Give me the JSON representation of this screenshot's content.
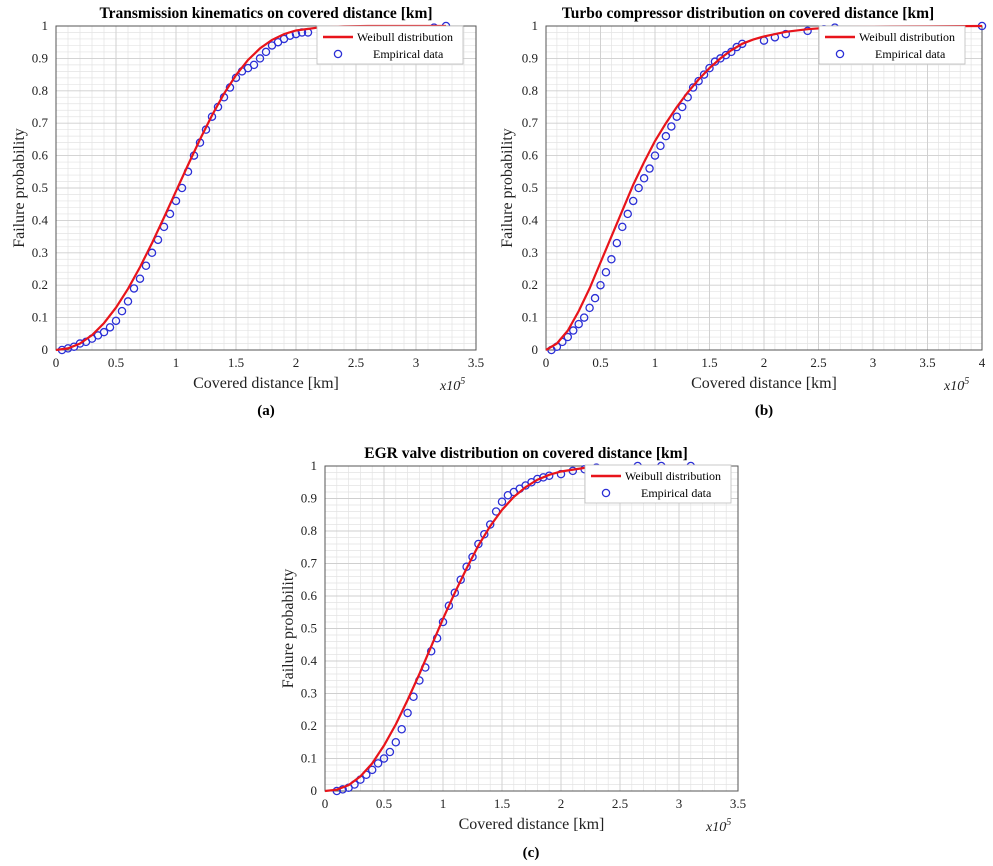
{
  "colors": {
    "model": "#e8141b",
    "empirical": "#2b2fd6",
    "grid": "#e3e3e3",
    "axis": "#555555"
  },
  "chart_data": [
    {
      "panel_label": "(a)",
      "type": "line",
      "title": "Transmission kinematics on covered distance [km]",
      "xlabel": "Covered distance [km]",
      "ylabel": "Failure probability",
      "x_multiplier": "x10",
      "x_multiplier_exp": "5",
      "xlim": [
        0,
        3.5
      ],
      "ylim": [
        0,
        1
      ],
      "xticks": [
        "0",
        "0.5",
        "1",
        "1.5",
        "2",
        "2.5",
        "3",
        "3.5"
      ],
      "yticks": [
        "0",
        "0.1",
        "0.2",
        "0.3",
        "0.4",
        "0.5",
        "0.6",
        "0.7",
        "0.8",
        "0.9",
        "1"
      ],
      "grid": "on (major and minor)",
      "legend_position": "top-right",
      "series": [
        {
          "name": "Weibull distribution",
          "kind": "line",
          "x": [
            0,
            0.1,
            0.2,
            0.3,
            0.4,
            0.5,
            0.6,
            0.7,
            0.8,
            0.9,
            1.0,
            1.1,
            1.2,
            1.3,
            1.4,
            1.5,
            1.6,
            1.7,
            1.8,
            1.9,
            2.0,
            2.2,
            2.4,
            2.6,
            2.8,
            3.0,
            3.25
          ],
          "y": [
            0,
            0.005,
            0.02,
            0.046,
            0.083,
            0.131,
            0.189,
            0.256,
            0.33,
            0.409,
            0.49,
            0.571,
            0.65,
            0.724,
            0.791,
            0.848,
            0.895,
            0.931,
            0.957,
            0.975,
            0.986,
            0.996,
            0.999,
            1.0,
            1.0,
            1.0,
            1.0
          ]
        },
        {
          "name": "Empirical data",
          "kind": "markers",
          "x": [
            0.05,
            0.1,
            0.15,
            0.2,
            0.25,
            0.3,
            0.35,
            0.4,
            0.45,
            0.5,
            0.55,
            0.6,
            0.65,
            0.7,
            0.75,
            0.8,
            0.85,
            0.9,
            0.95,
            1.0,
            1.05,
            1.1,
            1.15,
            1.2,
            1.25,
            1.3,
            1.35,
            1.4,
            1.45,
            1.5,
            1.55,
            1.6,
            1.65,
            1.7,
            1.75,
            1.8,
            1.85,
            1.9,
            1.95,
            2.0,
            2.05,
            2.1,
            2.5,
            2.65,
            3.15,
            3.25
          ],
          "y": [
            0.0,
            0.005,
            0.01,
            0.02,
            0.025,
            0.035,
            0.045,
            0.055,
            0.07,
            0.09,
            0.12,
            0.15,
            0.19,
            0.22,
            0.26,
            0.3,
            0.34,
            0.38,
            0.42,
            0.46,
            0.5,
            0.55,
            0.6,
            0.64,
            0.68,
            0.72,
            0.75,
            0.78,
            0.81,
            0.84,
            0.86,
            0.87,
            0.88,
            0.9,
            0.92,
            0.94,
            0.95,
            0.96,
            0.97,
            0.975,
            0.98,
            0.98,
            0.985,
            0.99,
            0.995,
            1.0
          ]
        }
      ]
    },
    {
      "panel_label": "(b)",
      "type": "line",
      "title": "Turbo compressor distribution on covered distance [km]",
      "xlabel": "Covered distance [km]",
      "ylabel": "Failure probability",
      "x_multiplier": "x10",
      "x_multiplier_exp": "5",
      "xlim": [
        0,
        4
      ],
      "ylim": [
        0,
        1
      ],
      "xticks": [
        "0",
        "0.5",
        "1",
        "1.5",
        "2",
        "2.5",
        "3",
        "3.5",
        "4"
      ],
      "yticks": [
        "0",
        "0.1",
        "0.2",
        "0.3",
        "0.4",
        "0.5",
        "0.6",
        "0.7",
        "0.8",
        "0.9",
        "1"
      ],
      "grid": "on (major and minor)",
      "legend_position": "top-right",
      "series": [
        {
          "name": "Weibull distribution",
          "kind": "line",
          "x": [
            0,
            0.1,
            0.2,
            0.3,
            0.4,
            0.5,
            0.6,
            0.7,
            0.8,
            0.9,
            1.0,
            1.1,
            1.2,
            1.3,
            1.4,
            1.5,
            1.6,
            1.7,
            1.8,
            1.9,
            2.0,
            2.2,
            2.4,
            2.6,
            2.8,
            3.0,
            3.5,
            4.0
          ],
          "y": [
            0,
            0.02,
            0.06,
            0.12,
            0.19,
            0.27,
            0.35,
            0.43,
            0.51,
            0.58,
            0.645,
            0.7,
            0.75,
            0.795,
            0.835,
            0.87,
            0.9,
            0.925,
            0.945,
            0.958,
            0.968,
            0.982,
            0.99,
            0.995,
            0.997,
            0.998,
            0.999,
            1.0
          ]
        },
        {
          "name": "Empirical data",
          "kind": "markers",
          "x": [
            0.05,
            0.1,
            0.15,
            0.2,
            0.25,
            0.3,
            0.35,
            0.4,
            0.45,
            0.5,
            0.55,
            0.6,
            0.65,
            0.7,
            0.75,
            0.8,
            0.85,
            0.9,
            0.95,
            1.0,
            1.05,
            1.1,
            1.15,
            1.2,
            1.25,
            1.3,
            1.35,
            1.4,
            1.45,
            1.5,
            1.55,
            1.6,
            1.65,
            1.7,
            1.75,
            1.8,
            2.0,
            2.1,
            2.2,
            2.4,
            2.55,
            2.65,
            4.0
          ],
          "y": [
            0.0,
            0.01,
            0.025,
            0.04,
            0.06,
            0.08,
            0.1,
            0.13,
            0.16,
            0.2,
            0.24,
            0.28,
            0.33,
            0.38,
            0.42,
            0.46,
            0.5,
            0.53,
            0.56,
            0.6,
            0.63,
            0.66,
            0.69,
            0.72,
            0.75,
            0.78,
            0.81,
            0.83,
            0.85,
            0.87,
            0.89,
            0.9,
            0.91,
            0.92,
            0.935,
            0.945,
            0.955,
            0.965,
            0.975,
            0.985,
            0.99,
            0.995,
            1.0
          ]
        }
      ]
    },
    {
      "panel_label": "(c)",
      "type": "line",
      "title": "EGR valve distribution on covered distance [km]",
      "xlabel": "Covered distance [km]",
      "ylabel": "Failure probability",
      "x_multiplier": "x10",
      "x_multiplier_exp": "5",
      "xlim": [
        0,
        3.5
      ],
      "ylim": [
        0,
        1
      ],
      "xticks": [
        "0",
        "0.5",
        "1",
        "1.5",
        "2",
        "2.5",
        "3",
        "3.5"
      ],
      "yticks": [
        "0",
        "0.1",
        "0.2",
        "0.3",
        "0.4",
        "0.5",
        "0.6",
        "0.7",
        "0.8",
        "0.9",
        "1"
      ],
      "grid": "on (major and minor)",
      "legend_position": "top-right",
      "series": [
        {
          "name": "Weibull distribution",
          "kind": "line",
          "x": [
            0,
            0.1,
            0.2,
            0.3,
            0.4,
            0.5,
            0.6,
            0.7,
            0.8,
            0.9,
            1.0,
            1.1,
            1.2,
            1.3,
            1.4,
            1.5,
            1.6,
            1.7,
            1.8,
            1.9,
            2.0,
            2.2,
            2.4,
            2.6,
            2.8,
            3.0,
            3.1
          ],
          "y": [
            0,
            0.004,
            0.018,
            0.045,
            0.085,
            0.14,
            0.205,
            0.28,
            0.36,
            0.445,
            0.53,
            0.61,
            0.685,
            0.755,
            0.815,
            0.865,
            0.905,
            0.935,
            0.958,
            0.973,
            0.983,
            0.994,
            0.998,
            0.999,
            1.0,
            1.0,
            1.0
          ]
        },
        {
          "name": "Empirical data",
          "kind": "markers",
          "x": [
            0.1,
            0.15,
            0.2,
            0.25,
            0.3,
            0.35,
            0.4,
            0.45,
            0.5,
            0.55,
            0.6,
            0.65,
            0.7,
            0.75,
            0.8,
            0.85,
            0.9,
            0.95,
            1.0,
            1.05,
            1.1,
            1.15,
            1.2,
            1.25,
            1.3,
            1.35,
            1.4,
            1.45,
            1.5,
            1.55,
            1.6,
            1.65,
            1.7,
            1.75,
            1.8,
            1.85,
            1.9,
            2.0,
            2.1,
            2.2,
            2.3,
            2.65,
            2.85,
            3.1
          ],
          "y": [
            0.0,
            0.005,
            0.01,
            0.02,
            0.035,
            0.05,
            0.065,
            0.085,
            0.1,
            0.12,
            0.15,
            0.19,
            0.24,
            0.29,
            0.34,
            0.38,
            0.43,
            0.47,
            0.52,
            0.57,
            0.61,
            0.65,
            0.69,
            0.72,
            0.76,
            0.79,
            0.82,
            0.86,
            0.89,
            0.91,
            0.92,
            0.93,
            0.94,
            0.95,
            0.96,
            0.965,
            0.97,
            0.975,
            0.985,
            0.99,
            0.995,
            1.0,
            1.0,
            1.0
          ]
        }
      ]
    }
  ]
}
